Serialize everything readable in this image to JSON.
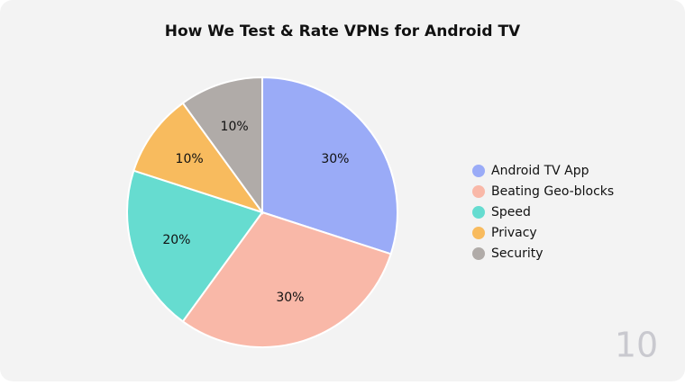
{
  "chart_data": {
    "type": "pie",
    "title": "How We Test & Rate VPNs for Android TV",
    "categories": [
      "Android TV App",
      "Beating Geo-blocks",
      "Speed",
      "Privacy",
      "Security"
    ],
    "values": [
      30,
      30,
      20,
      10,
      10
    ],
    "value_labels": [
      "30%",
      "30%",
      "20%",
      "10%",
      "10%"
    ],
    "colors": [
      "#9aabf7",
      "#f9b8a8",
      "#66dcd0",
      "#f8bb5e",
      "#b0aba8"
    ],
    "legend": "right"
  },
  "brand": "10"
}
